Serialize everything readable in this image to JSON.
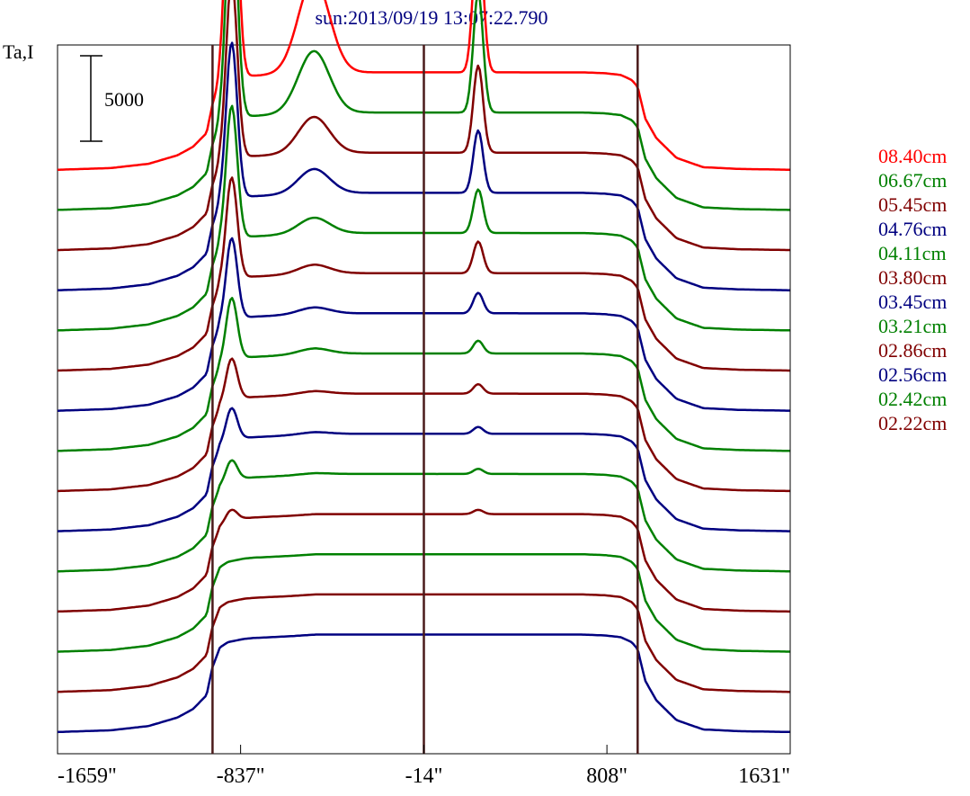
{
  "chart_data": {
    "type": "line",
    "title": "sun:2013/09/19 13:07:22.790",
    "ylabel": "Ta,I",
    "scale_bar_label": "5000",
    "scale_bar_value": 5000,
    "xlim": [
      -1659,
      1631
    ],
    "xticks": [
      {
        "value": -1659,
        "label": "-1659\""
      },
      {
        "value": -837,
        "label": "-837\""
      },
      {
        "value": -14,
        "label": "-14\""
      },
      {
        "value": 808,
        "label": "808\""
      },
      {
        "value": 1631,
        "label": "1631\""
      }
    ],
    "vertical_lines": [
      -963,
      -14,
      946
    ],
    "offset_step": 2350,
    "series": [
      {
        "name": "08.40cm",
        "color": "#ff0000",
        "baseline": 33750
      },
      {
        "name": "06.67cm",
        "color": "#008000",
        "baseline": 31400
      },
      {
        "name": "05.45cm",
        "color": "#800000",
        "baseline": 29050
      },
      {
        "name": "04.76cm",
        "color": "#000080",
        "baseline": 26700
      },
      {
        "name": "04.11cm",
        "color": "#008000",
        "baseline": 24350
      },
      {
        "name": "03.80cm",
        "color": "#800000",
        "baseline": 22000
      },
      {
        "name": "03.45cm",
        "color": "#000080",
        "baseline": 19650
      },
      {
        "name": "03.21cm",
        "color": "#008000",
        "baseline": 17300
      },
      {
        "name": "02.86cm",
        "color": "#800000",
        "baseline": 14950
      },
      {
        "name": "02.56cm",
        "color": "#000080",
        "baseline": 12600
      },
      {
        "name": "02.42cm",
        "color": "#008000",
        "baseline": 10250
      },
      {
        "name": "02.22cm",
        "color": "#800000",
        "baseline": 7900
      }
    ],
    "unlabeled_traces": [
      {
        "color": "#008000",
        "baseline": 5550
      },
      {
        "color": "#800000",
        "baseline": 3200
      },
      {
        "color": "#000080",
        "baseline": 850
      }
    ],
    "profile_shape": {
      "x": [
        -1659,
        -1420,
        -1250,
        -1120,
        -1050,
        -990,
        -963,
        -930,
        -895,
        -860,
        -820,
        -780,
        -700,
        -620,
        -560,
        -500,
        -430,
        -360,
        -250,
        -100,
        -14,
        100,
        200,
        230,
        255,
        280,
        300,
        340,
        450,
        560,
        700,
        800,
        870,
        920,
        946,
        980,
        1030,
        1120,
        1240,
        1400,
        1631
      ],
      "disk": [
        0,
        100,
        350,
        850,
        1350,
        2150,
        3800,
        4950,
        5250,
        5350,
        5450,
        5500,
        5550,
        5600,
        5650,
        5700,
        5700,
        5700,
        5700,
        5700,
        5700,
        5700,
        5700,
        5700,
        5700,
        5700,
        5700,
        5700,
        5700,
        5700,
        5700,
        5650,
        5550,
        5250,
        4850,
        3000,
        1850,
        700,
        150,
        50,
        0
      ],
      "peak1_x": -877,
      "peak1_width": 25,
      "peak1_amp": [
        17000,
        13500,
        10600,
        9200,
        7850,
        6000,
        4800,
        3650,
        2450,
        1900,
        1200,
        650
      ],
      "peak2_x": -508,
      "peak2_width": 70,
      "peak2_amp": [
        5500,
        3600,
        2100,
        1400,
        900,
        500,
        350,
        300,
        150,
        100,
        50,
        0
      ],
      "peak3_x": 230,
      "peak3_width": 22,
      "peak3_amp": [
        8800,
        7000,
        5100,
        3650,
        2550,
        1850,
        1200,
        750,
        550,
        400,
        300,
        250
      ]
    }
  }
}
